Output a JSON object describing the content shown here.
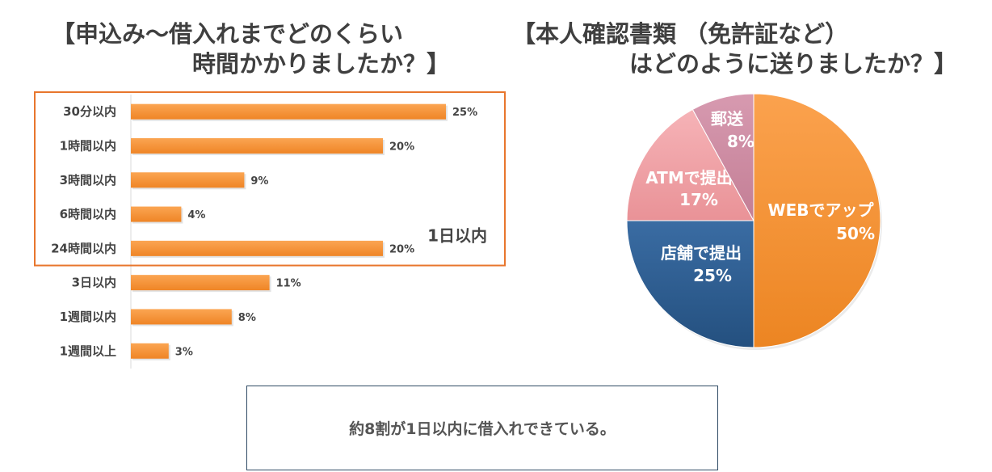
{
  "titles": {
    "left": "【申込み～借入れまでどのくらい\n　　　　　　時間かかりましたか？】",
    "right": "【本人確認書類 （免許証など）\n　　　　　はどのように送りましたか？】"
  },
  "chart_data": [
    {
      "type": "bar",
      "orientation": "horizontal",
      "title": "【申込み～借入れまでどのくらい 時間かかりましたか？】",
      "categories": [
        "30分以内",
        "1時間以内",
        "3時間以内",
        "6時間以内",
        "24時間以内",
        "3日以内",
        "1週間以内",
        "1週間以上"
      ],
      "values": [
        25,
        20,
        9,
        4,
        20,
        11,
        8,
        3
      ],
      "value_labels": [
        "25%",
        "20%",
        "9%",
        "4%",
        "20%",
        "11%",
        "8%",
        "3%"
      ],
      "unit": "%",
      "color": "#F7953A",
      "highlight": {
        "label": "1日以内",
        "from_index": 0,
        "to_index": 4,
        "color": "#E8762D"
      },
      "grid": false
    },
    {
      "type": "pie",
      "title": "【本人確認書類 （免許証など） はどのように送りましたか？】",
      "slices": [
        {
          "label": "WEBでアップ",
          "value": 50,
          "pct_label": "50%",
          "color": "#F7953A"
        },
        {
          "label": "店舗で提出",
          "value": 25,
          "pct_label": "25%",
          "color": "#2E5E94"
        },
        {
          "label": "ATMで提出",
          "value": 17,
          "pct_label": "17%",
          "color": "#EFA0A5"
        },
        {
          "label": "郵送",
          "value": 8,
          "pct_label": "8%",
          "color": "#CC8AA0"
        }
      ]
    }
  ],
  "summary": "約8割が1日以内に借入れできている。"
}
